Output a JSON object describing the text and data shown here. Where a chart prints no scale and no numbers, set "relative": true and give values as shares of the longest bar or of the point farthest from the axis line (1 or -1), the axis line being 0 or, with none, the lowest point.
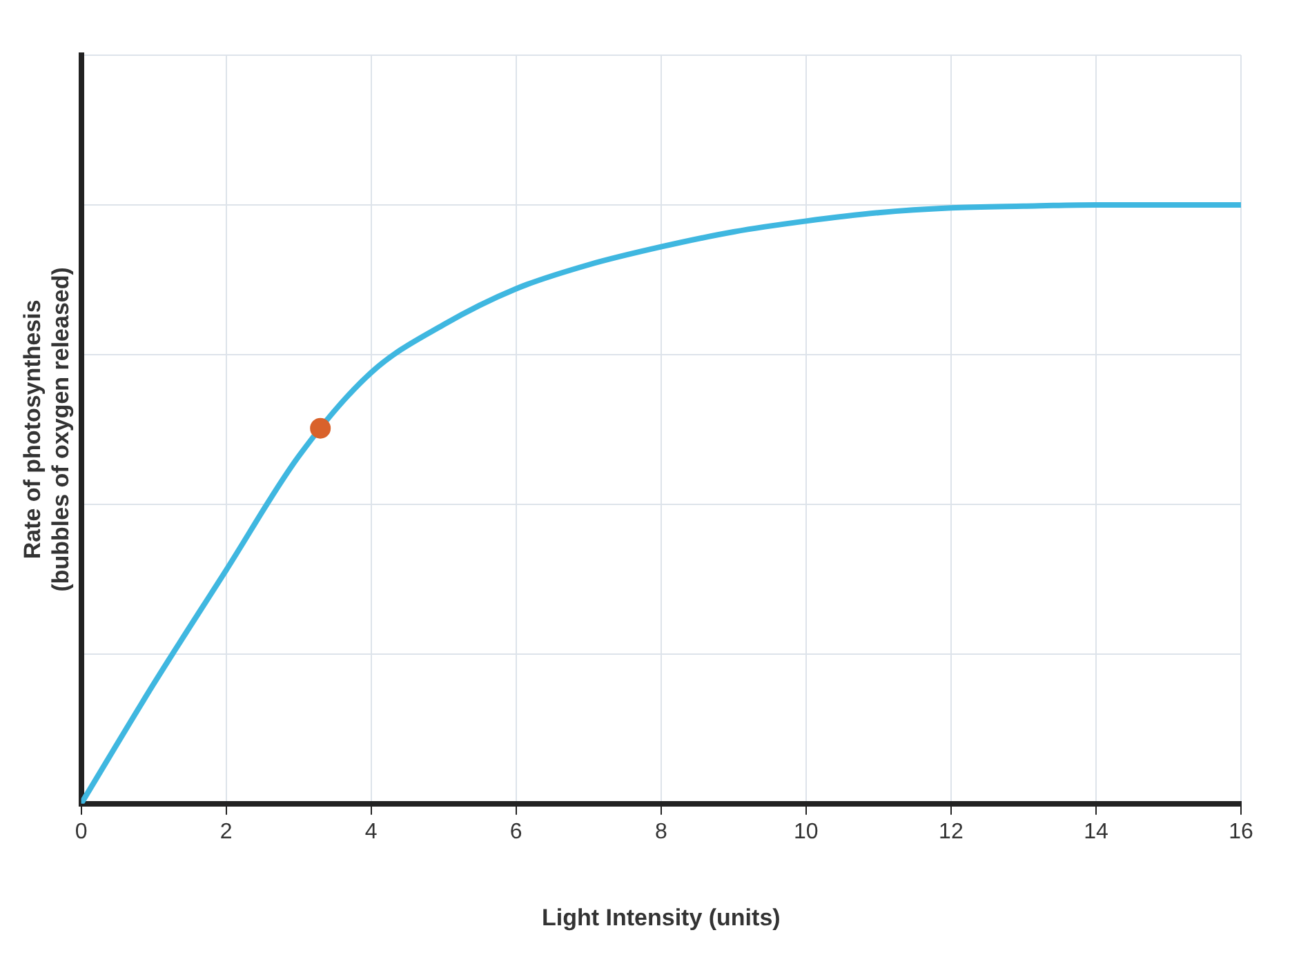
{
  "chart_data": {
    "type": "line",
    "relative": true,
    "xlabel": "Light Intensity (units)",
    "ylabel": "Rate of photosynthesis\n(bubbles of oxygen released)",
    "xlim": [
      0,
      16
    ],
    "xticks": [
      0,
      2,
      4,
      6,
      8,
      10,
      12,
      14,
      16
    ],
    "grid": true,
    "legend": false,
    "tick_labels": "x",
    "series": [
      {
        "color": "#3fb7e0",
        "marker": "none",
        "x": [
          0,
          1,
          2,
          3,
          4,
          5,
          6,
          7,
          8,
          9,
          10,
          11,
          12,
          13,
          14,
          15,
          16
        ],
        "values": [
          0,
          0.2,
          0.39,
          0.58,
          0.72,
          0.8,
          0.86,
          0.9,
          0.93,
          0.955,
          0.973,
          0.987,
          0.995,
          0.998,
          1,
          1,
          1
        ]
      },
      {
        "type": "scatter",
        "marker": "circle",
        "color": "#d9622b",
        "x": [
          3.3
        ],
        "values": [
          0.627
        ]
      }
    ]
  }
}
